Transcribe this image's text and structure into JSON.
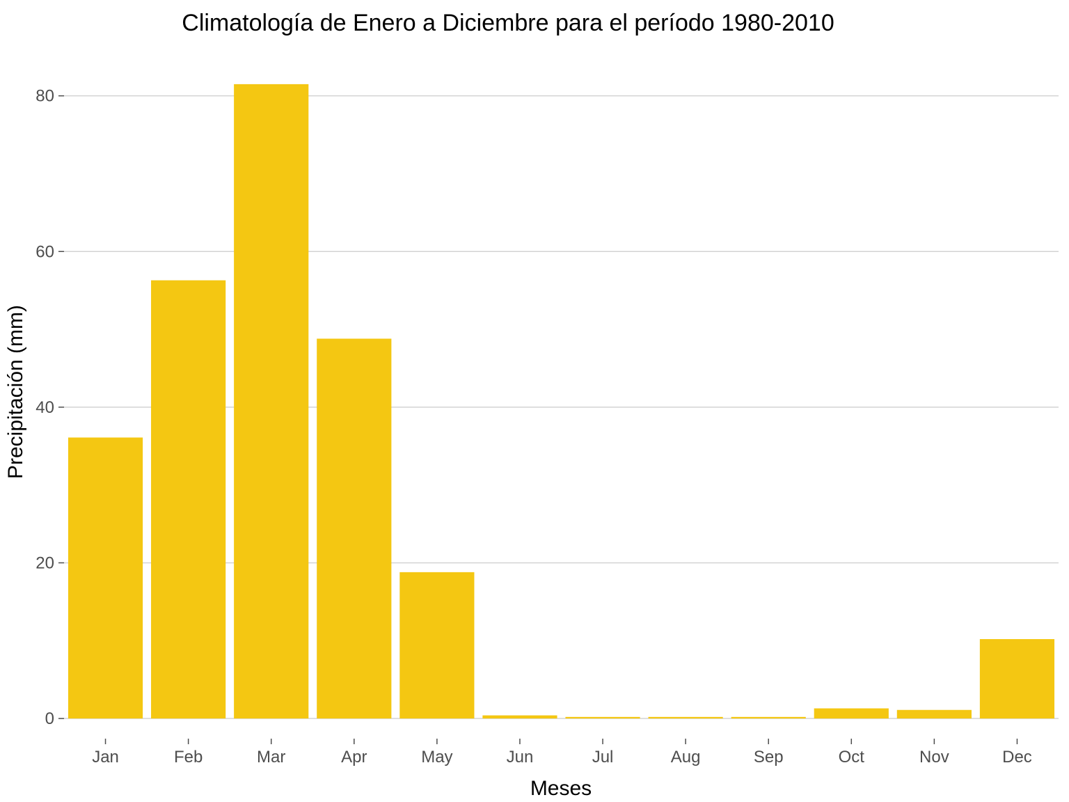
{
  "chart_data": {
    "type": "bar",
    "title": "Climatología de Enero a Diciembre para el período 1980-2010",
    "xlabel": "Meses",
    "ylabel": "Precipitación (mm)",
    "categories": [
      "Jan",
      "Feb",
      "Mar",
      "Apr",
      "May",
      "Jun",
      "Jul",
      "Aug",
      "Sep",
      "Oct",
      "Nov",
      "Dec"
    ],
    "values": [
      36.1,
      56.3,
      81.5,
      48.8,
      18.8,
      0.4,
      0.2,
      0.2,
      0.2,
      1.3,
      1.1,
      10.2
    ],
    "yticks": [
      0,
      20,
      40,
      60,
      80
    ],
    "ylim": [
      -2.5,
      84.8
    ],
    "grid": true,
    "colors": {
      "bar": "#F4C712",
      "grid": "#d3d3d3",
      "tick_text": "#4d4d4d",
      "text": "#000000"
    }
  }
}
